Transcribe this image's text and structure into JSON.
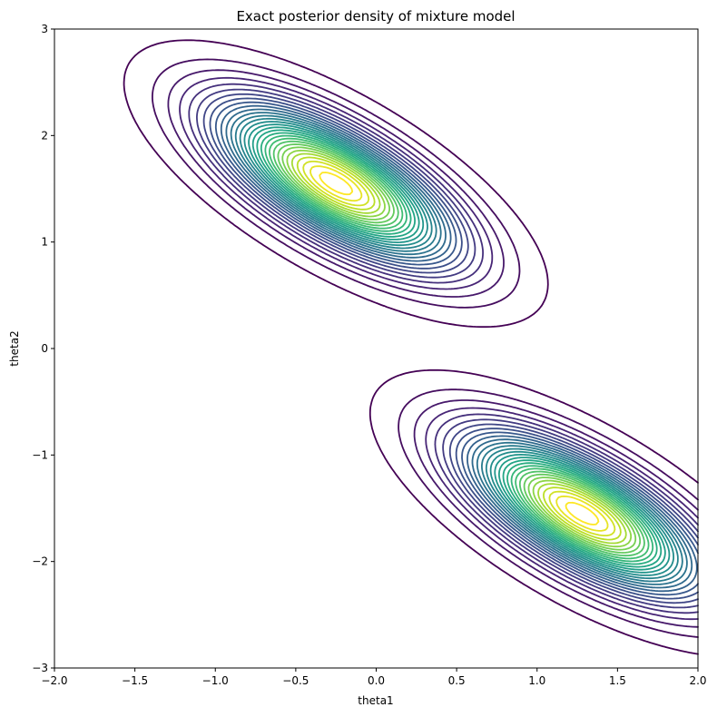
{
  "chart_data": {
    "type": "contour",
    "title": "Exact posterior density of mixture model",
    "xlabel": "theta1",
    "ylabel": "theta2",
    "xlim": [
      -2.0,
      2.0
    ],
    "ylim": [
      -3,
      3
    ],
    "x_ticks": [
      "−2.0",
      "−1.5",
      "−1.0",
      "−0.5",
      "0.0",
      "0.5",
      "1.0",
      "1.5",
      "2.0"
    ],
    "x_tick_values": [
      -2.0,
      -1.5,
      -1.0,
      -0.5,
      0.0,
      0.5,
      1.0,
      1.5,
      2.0
    ],
    "y_ticks": [
      "−3",
      "−2",
      "−1",
      "0",
      "1",
      "2",
      "3"
    ],
    "y_tick_values": [
      -3,
      -2,
      -1,
      0,
      1,
      2,
      3
    ],
    "colormap": "viridis",
    "grid": false,
    "modes": [
      {
        "theta1": -0.25,
        "theta2": 1.55
      },
      {
        "theta1": 1.28,
        "theta2": -1.55
      }
    ]
  }
}
